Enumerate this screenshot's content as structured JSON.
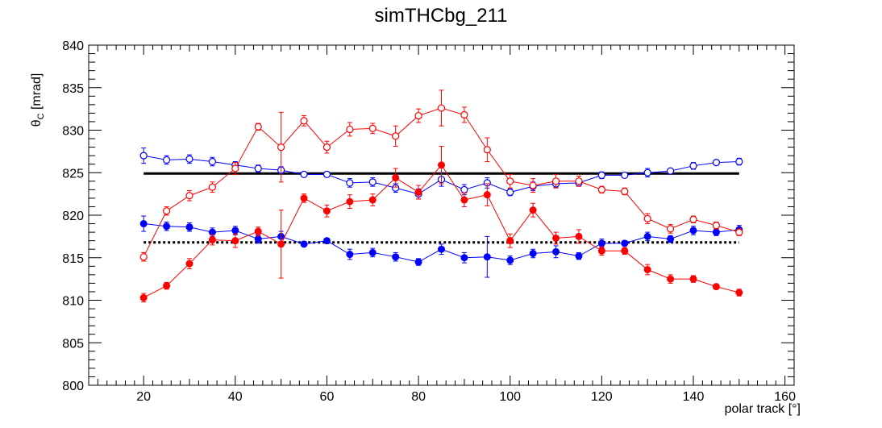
{
  "chart_data": {
    "type": "scatter",
    "title": "simTHCbg_211",
    "xlabel": "polar track [°]",
    "ylabel": {
      "base": "θ",
      "sub": "C",
      "rest": " [mrad]"
    },
    "xlim": [
      8,
      162
    ],
    "ylim": [
      800,
      840
    ],
    "xticks": [
      20,
      40,
      60,
      80,
      100,
      120,
      140,
      160
    ],
    "yticks": [
      800,
      805,
      810,
      815,
      820,
      825,
      830,
      835,
      840
    ],
    "grid": false,
    "x": [
      20,
      25,
      30,
      35,
      40,
      45,
      50,
      55,
      60,
      65,
      70,
      75,
      80,
      85,
      90,
      95,
      100,
      105,
      110,
      115,
      120,
      125,
      130,
      135,
      140,
      145,
      150
    ],
    "series": [
      {
        "color": "#0000ff",
        "marker": "open-circle",
        "values": [
          827.0,
          826.5,
          826.6,
          826.3,
          825.9,
          825.5,
          825.3,
          824.8,
          824.8,
          823.8,
          823.9,
          823.2,
          822.5,
          824.2,
          823.0,
          823.8,
          822.7,
          823.4,
          823.7,
          823.8,
          824.7,
          824.7,
          825.0,
          825.2,
          825.8,
          826.2,
          826.3
        ],
        "errors": [
          0.9,
          0.5,
          0.5,
          0.5,
          0.4,
          0.4,
          0.4,
          0.3,
          0.3,
          0.5,
          0.5,
          0.5,
          0.6,
          0.8,
          0.6,
          0.6,
          0.4,
          0.5,
          0.4,
          0.4,
          0.4,
          0.3,
          0.5,
          0.3,
          0.4,
          0.3,
          0.4
        ]
      },
      {
        "color": "#0000ff",
        "marker": "filled-circle",
        "values": [
          819.0,
          818.7,
          818.6,
          818.0,
          818.2,
          817.2,
          817.5,
          816.6,
          817.0,
          815.4,
          815.6,
          815.1,
          814.5,
          816.0,
          815.0,
          815.1,
          814.7,
          815.5,
          815.7,
          815.2,
          816.7,
          816.7,
          817.5,
          817.2,
          818.2,
          818.0,
          818.3
        ],
        "errors": [
          0.9,
          0.5,
          0.5,
          0.5,
          0.5,
          0.5,
          0.6,
          0.3,
          0.3,
          0.6,
          0.5,
          0.5,
          0.4,
          0.6,
          0.6,
          2.4,
          0.5,
          0.5,
          0.7,
          0.4,
          0.5,
          0.3,
          0.5,
          0.4,
          0.5,
          0.4,
          0.5
        ]
      },
      {
        "color": "#ff0000",
        "marker": "open-circle",
        "values": [
          815.1,
          820.5,
          822.3,
          823.3,
          825.5,
          830.4,
          828.0,
          831.1,
          828.0,
          830.1,
          830.2,
          829.3,
          831.7,
          832.6,
          831.8,
          827.7,
          824.0,
          823.5,
          824.0,
          824.0,
          823.0,
          822.8,
          819.6,
          818.4,
          819.5,
          818.8,
          818.0
        ],
        "errors": [
          0.5,
          0.5,
          0.6,
          0.6,
          0.7,
          0.4,
          4.1,
          0.6,
          0.7,
          0.8,
          0.6,
          1.2,
          0.8,
          2.1,
          0.9,
          1.4,
          0.8,
          0.8,
          0.8,
          0.6,
          0.4,
          0.4,
          0.6,
          0.5,
          0.4,
          0.4,
          0.4
        ]
      },
      {
        "color": "#ff0000",
        "marker": "filled-circle",
        "values": [
          810.3,
          811.7,
          814.3,
          817.1,
          817.0,
          818.1,
          816.6,
          822.0,
          820.5,
          821.6,
          821.8,
          824.4,
          822.7,
          825.9,
          821.8,
          822.4,
          817.0,
          820.6,
          817.3,
          817.5,
          815.8,
          815.8,
          813.6,
          812.5,
          812.5,
          811.6,
          810.9
        ],
        "errors": [
          0.5,
          0.4,
          0.6,
          0.6,
          0.8,
          0.5,
          4.0,
          0.5,
          0.7,
          0.8,
          0.7,
          1.1,
          0.8,
          2.2,
          0.8,
          1.3,
          0.8,
          0.8,
          0.7,
          0.8,
          0.5,
          0.4,
          0.6,
          0.5,
          0.4,
          0.3,
          0.4
        ]
      }
    ],
    "reference_lines": [
      {
        "y": 824.9,
        "x_range": [
          20,
          150
        ],
        "style": "solid",
        "color": "#000000"
      },
      {
        "y": 816.8,
        "x_range": [
          20,
          150
        ],
        "style": "dotted",
        "color": "#000000"
      }
    ]
  }
}
